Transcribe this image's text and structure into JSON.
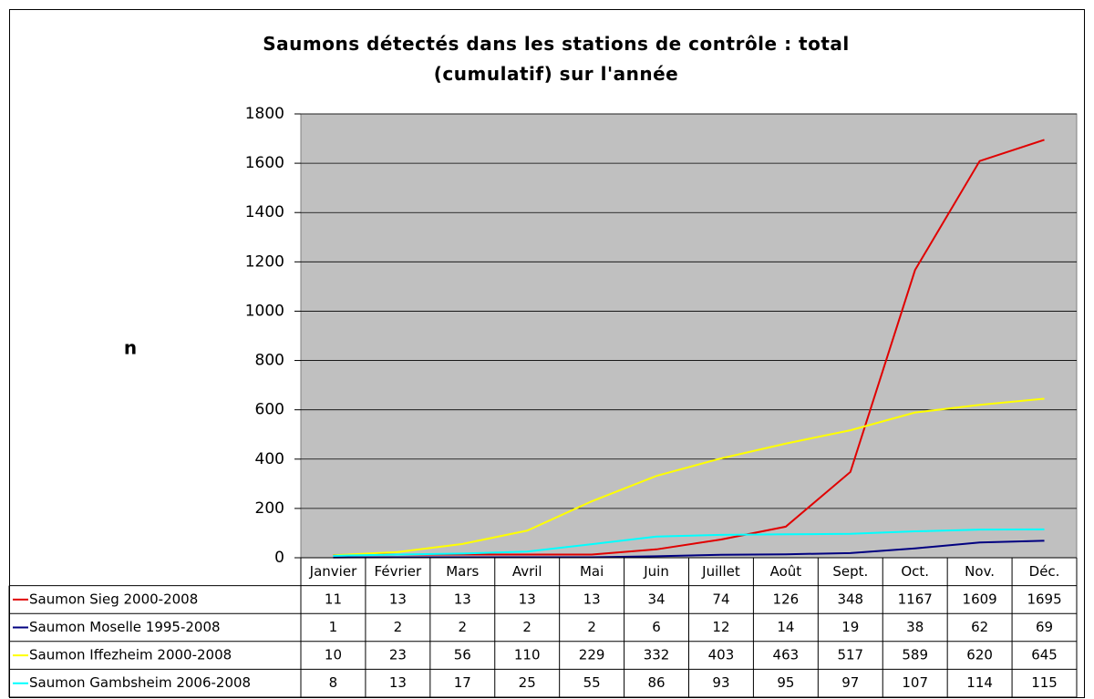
{
  "chart_data": {
    "type": "line",
    "title": "Saumons détectés dans les stations de contrôle : total (cumulatif) sur l'année",
    "ylabel": "n",
    "categories": [
      "Janvier",
      "Février",
      "Mars",
      "Avril",
      "Mai",
      "Juin",
      "Juillet",
      "Août",
      "Sept.",
      "Oct.",
      "Nov.",
      "Déc."
    ],
    "series": [
      {
        "name": "Saumon Sieg 2000-2008",
        "color": "#e00000",
        "values": [
          11,
          13,
          13,
          13,
          13,
          34,
          74,
          126,
          348,
          1167,
          1609,
          1695
        ]
      },
      {
        "name": "Saumon Moselle 1995-2008",
        "color": "#000080",
        "values": [
          1,
          2,
          2,
          2,
          2,
          6,
          12,
          14,
          19,
          38,
          62,
          69
        ]
      },
      {
        "name": "Saumon Iffezheim 2000-2008",
        "color": "#ffff00",
        "values": [
          10,
          23,
          56,
          110,
          229,
          332,
          403,
          463,
          517,
          589,
          620,
          645
        ]
      },
      {
        "name": "Saumon Gambsheim 2006-2008",
        "color": "#00ffff",
        "values": [
          8,
          13,
          17,
          25,
          55,
          86,
          93,
          95,
          97,
          107,
          114,
          115
        ]
      }
    ],
    "ylim": [
      0,
      1800
    ],
    "yticks": [
      0,
      200,
      400,
      600,
      800,
      1000,
      1200,
      1400,
      1600,
      1800
    ],
    "grid": true,
    "background": "#c0c0c0"
  }
}
